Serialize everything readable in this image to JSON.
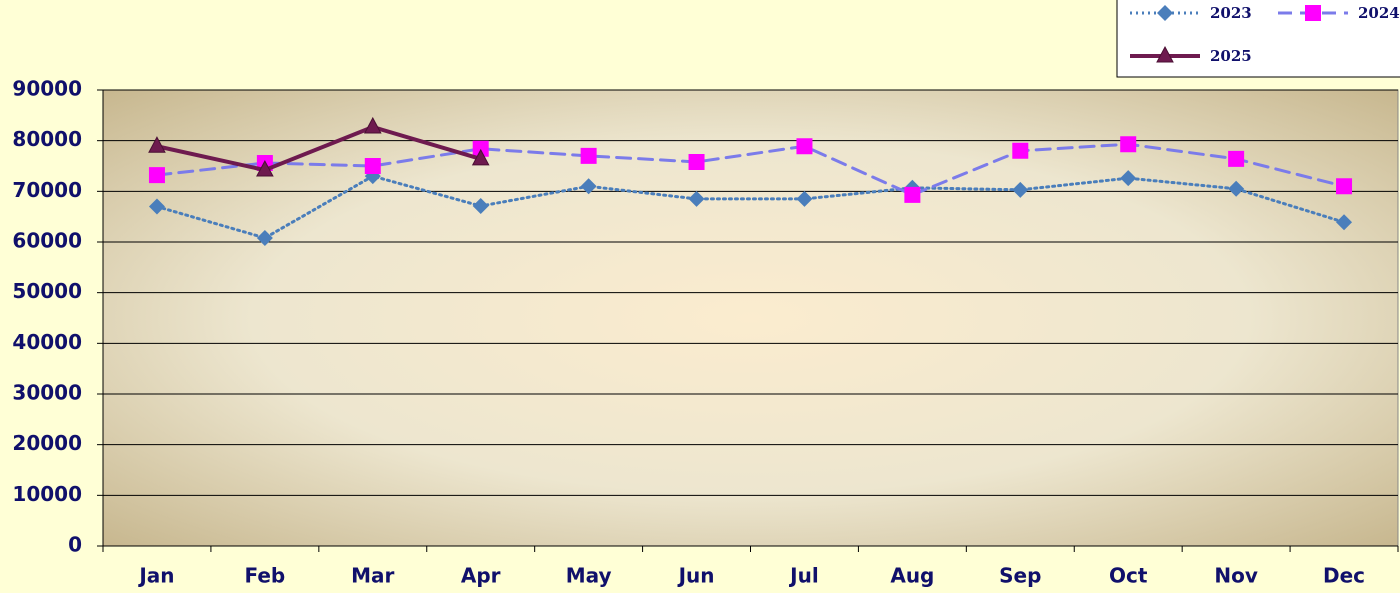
{
  "chart_data": {
    "type": "line",
    "categories": [
      "Jan",
      "Feb",
      "Mar",
      "Apr",
      "May",
      "Jun",
      "Jul",
      "Aug",
      "Sep",
      "Oct",
      "Nov",
      "Dec"
    ],
    "series": [
      {
        "name": "2023",
        "color": "#4a7ebb",
        "marker": "diamond",
        "dash": "dotted",
        "values": [
          67000,
          60800,
          73000,
          67100,
          71000,
          68500,
          68500,
          70700,
          70300,
          72600,
          70500,
          63900
        ]
      },
      {
        "name": "2024",
        "color": "#7b7bea",
        "marker_color": "#ff00ff",
        "marker": "square",
        "dash": "dashed",
        "values": [
          73200,
          75600,
          75000,
          78400,
          77000,
          75800,
          78900,
          69300,
          78000,
          79300,
          76400,
          71000
        ]
      },
      {
        "name": "2025",
        "color": "#6e1a4f",
        "marker": "triangle",
        "dash": "solid",
        "values": [
          78900,
          74200,
          82700,
          76400,
          null,
          null,
          null,
          null,
          null,
          null,
          null,
          null
        ]
      }
    ],
    "ylim": [
      0,
      90000
    ],
    "yticks": [
      0,
      10000,
      20000,
      30000,
      40000,
      50000,
      60000,
      70000,
      80000,
      90000
    ],
    "grid": true,
    "legend": "top-right"
  }
}
